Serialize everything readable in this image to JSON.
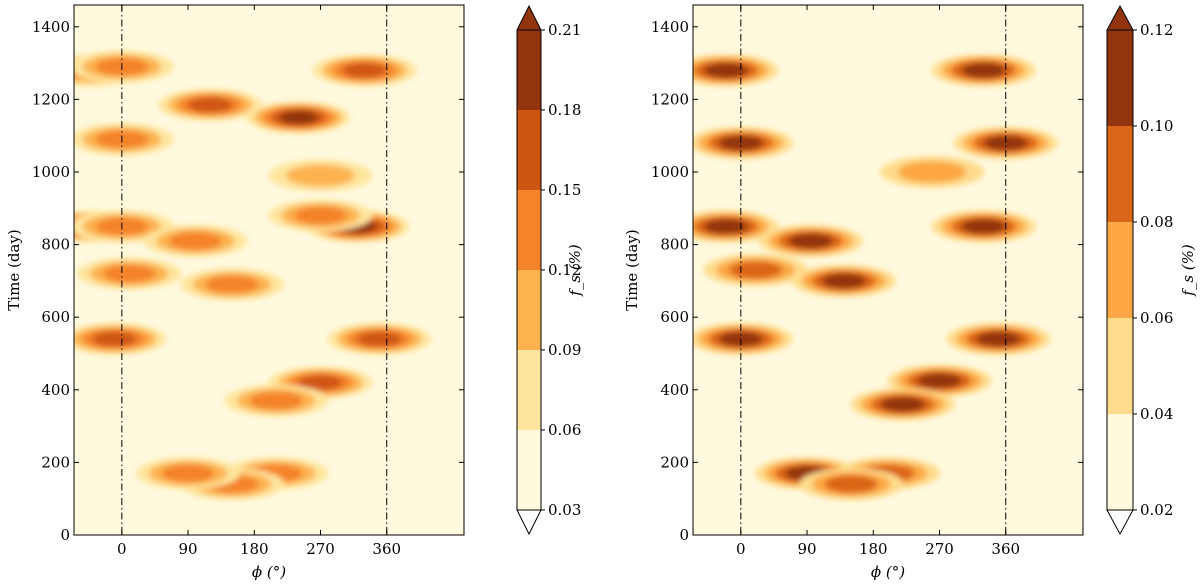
{
  "chart_data": [
    {
      "type": "heatmap",
      "subtype": "filled-contour",
      "xlabel": "ϕ (°)",
      "ylabel": "Time (day)",
      "xlim": [
        -65,
        465
      ],
      "ylim": [
        0,
        1460
      ],
      "xticks": [
        0,
        90,
        180,
        270,
        360
      ],
      "yticks": [
        0,
        200,
        400,
        600,
        800,
        1000,
        1200,
        1400
      ],
      "reference_lines_x": [
        0,
        360
      ],
      "colorbar": {
        "label": "f_s (%)",
        "levels": [
          0.03,
          0.06,
          0.09,
          0.12,
          0.15,
          0.18,
          0.21
        ],
        "extend": "both",
        "colors": [
          "#fff9de",
          "#fee59d",
          "#fdb24f",
          "#f4832a",
          "#cf5612",
          "#92350f"
        ]
      },
      "features": [
        {
          "x": -40,
          "y": 850,
          "value": 0.19
        },
        {
          "x": 0,
          "y": 850,
          "value": 0.14
        },
        {
          "x": 320,
          "y": 850,
          "value": 0.19
        },
        {
          "x": 240,
          "y": 1150,
          "value": 0.21
        },
        {
          "x": 120,
          "y": 1185,
          "value": 0.15
        },
        {
          "x": -40,
          "y": 1280,
          "value": 0.14
        },
        {
          "x": 0,
          "y": 1290,
          "value": 0.13
        },
        {
          "x": 330,
          "y": 1280,
          "value": 0.15
        },
        {
          "x": -10,
          "y": 540,
          "value": 0.16
        },
        {
          "x": 350,
          "y": 540,
          "value": 0.16
        },
        {
          "x": 10,
          "y": 720,
          "value": 0.14
        },
        {
          "x": 150,
          "y": 690,
          "value": 0.13
        },
        {
          "x": 270,
          "y": 420,
          "value": 0.17
        },
        {
          "x": 210,
          "y": 370,
          "value": 0.13
        },
        {
          "x": 210,
          "y": 170,
          "value": 0.14
        },
        {
          "x": 150,
          "y": 140,
          "value": 0.13
        },
        {
          "x": 90,
          "y": 170,
          "value": 0.12
        },
        {
          "x": 0,
          "y": 1090,
          "value": 0.12
        },
        {
          "x": 100,
          "y": 810,
          "value": 0.12
        },
        {
          "x": 270,
          "y": 880,
          "value": 0.13
        },
        {
          "x": 270,
          "y": 990,
          "value": 0.11
        }
      ]
    },
    {
      "type": "heatmap",
      "subtype": "filled-contour",
      "xlabel": "ϕ (°)",
      "ylabel": "Time (day)",
      "xlim": [
        -65,
        465
      ],
      "ylim": [
        0,
        1460
      ],
      "xticks": [
        0,
        90,
        180,
        270,
        360
      ],
      "yticks": [
        0,
        200,
        400,
        600,
        800,
        1000,
        1200,
        1400
      ],
      "reference_lines_x": [
        0,
        360
      ],
      "colorbar": {
        "label": "f_s (%)",
        "levels": [
          0.02,
          0.04,
          0.06,
          0.08,
          0.1,
          0.12
        ],
        "extend": "both",
        "colors": [
          "#fff9de",
          "#fedc8c",
          "#fca743",
          "#db6518",
          "#92350f"
        ]
      },
      "features": [
        {
          "x": -20,
          "y": 850,
          "value": 0.11
        },
        {
          "x": 330,
          "y": 850,
          "value": 0.11
        },
        {
          "x": -20,
          "y": 1280,
          "value": 0.11
        },
        {
          "x": 330,
          "y": 1280,
          "value": 0.11
        },
        {
          "x": 0,
          "y": 1080,
          "value": 0.1
        },
        {
          "x": 360,
          "y": 1080,
          "value": 0.1
        },
        {
          "x": 270,
          "y": 425,
          "value": 0.12
        },
        {
          "x": 220,
          "y": 360,
          "value": 0.12
        },
        {
          "x": 0,
          "y": 540,
          "value": 0.1
        },
        {
          "x": 350,
          "y": 540,
          "value": 0.1
        },
        {
          "x": 95,
          "y": 810,
          "value": 0.1
        },
        {
          "x": 90,
          "y": 170,
          "value": 0.1
        },
        {
          "x": 200,
          "y": 170,
          "value": 0.09
        },
        {
          "x": 140,
          "y": 700,
          "value": 0.1
        },
        {
          "x": 20,
          "y": 730,
          "value": 0.09
        },
        {
          "x": 260,
          "y": 1000,
          "value": 0.07
        },
        {
          "x": 150,
          "y": 140,
          "value": 0.08
        }
      ]
    }
  ]
}
